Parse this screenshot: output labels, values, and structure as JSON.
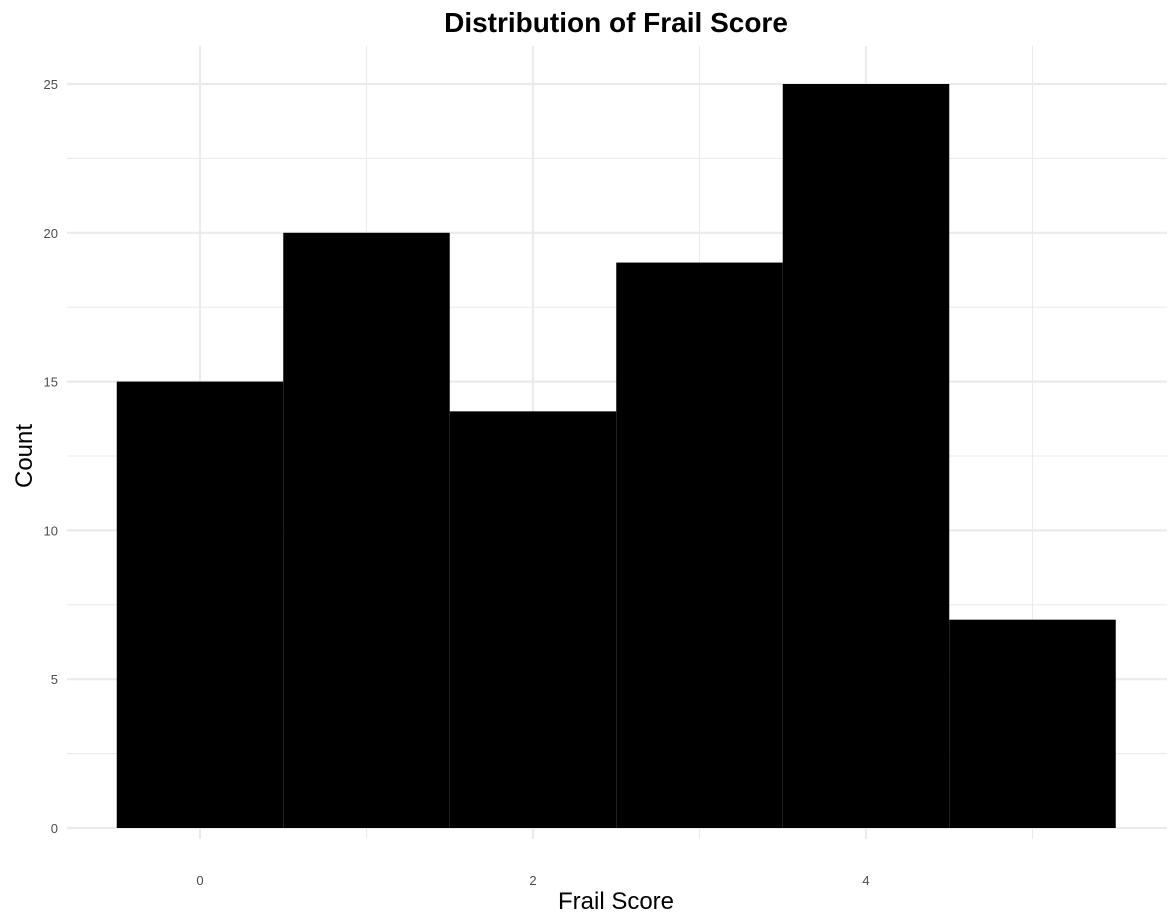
{
  "chart_data": {
    "type": "bar",
    "title": "Distribution of Frail Score",
    "xlabel": "Frail Score",
    "ylabel": "Count",
    "bins": [
      {
        "x_start": -0.5,
        "x_end": 0.5,
        "count": 15
      },
      {
        "x_start": 0.5,
        "x_end": 1.5,
        "count": 20
      },
      {
        "x_start": 1.5,
        "x_end": 2.5,
        "count": 14
      },
      {
        "x_start": 2.5,
        "x_end": 3.5,
        "count": 19
      },
      {
        "x_start": 3.5,
        "x_end": 4.5,
        "count": 25
      },
      {
        "x_start": 4.5,
        "x_end": 5.5,
        "count": 7
      }
    ],
    "xlim": [
      -0.5,
      5.5
    ],
    "ylim": [
      0,
      25
    ],
    "x_ticks": [
      0,
      2,
      4
    ],
    "x_minor_ticks": [
      1,
      3,
      5
    ],
    "y_ticks": [
      0,
      5,
      10,
      15,
      20,
      25
    ],
    "y_minor_ticks": [
      2.5,
      7.5,
      12.5,
      17.5,
      22.5
    ],
    "grid": true,
    "bar_color": "#000000"
  }
}
